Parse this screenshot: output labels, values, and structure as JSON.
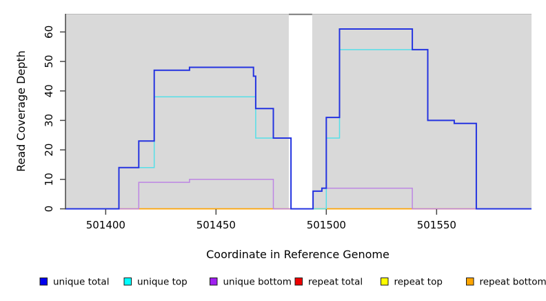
{
  "chart_data": {
    "type": "line",
    "subtype": "step-coverage",
    "title": "",
    "xlabel": "Coordinate in Reference Genome",
    "ylabel": "Read Coverage Depth",
    "x_ticks": [
      501400,
      501450,
      501500,
      501550
    ],
    "y_ticks": [
      0,
      10,
      20,
      30,
      40,
      50,
      60
    ],
    "x_range": [
      501381.5,
      501593
    ],
    "y_range": [
      0,
      66
    ],
    "grid": false,
    "plot_background": "#d9d9d9",
    "gap_region": {
      "x_start": 501483,
      "x_end": 501493.6
    },
    "series": [
      {
        "name": "repeat total",
        "color": "#ee2222",
        "line_width": 1.2,
        "points": [
          [
            501381.5,
            0
          ],
          [
            501593,
            0
          ]
        ]
      },
      {
        "name": "repeat top",
        "color": "#ffee00",
        "line_width": 1.2,
        "points": [
          [
            501381.5,
            0
          ],
          [
            501593,
            0
          ]
        ]
      },
      {
        "name": "repeat bottom",
        "color": "#ffa500",
        "line_width": 1.5,
        "points": [
          [
            501381.5,
            0
          ],
          [
            501593,
            0
          ]
        ]
      },
      {
        "name": "unique bottom",
        "color": "#bd85e3",
        "line_width": 1.5,
        "points": [
          [
            501381.5,
            0
          ],
          [
            501415,
            9
          ],
          [
            501438,
            10
          ],
          [
            501476,
            0
          ],
          [
            501494,
            6
          ],
          [
            501498,
            7
          ],
          [
            501539,
            0
          ],
          [
            501593,
            0
          ]
        ]
      },
      {
        "name": "unique top",
        "color": "#55dfe8",
        "line_width": 1.5,
        "points": [
          [
            501381.5,
            0
          ],
          [
            501406,
            14
          ],
          [
            501422,
            38
          ],
          [
            501468,
            24
          ],
          [
            501484,
            0
          ],
          [
            501500,
            24
          ],
          [
            501506,
            54
          ],
          [
            501546,
            30
          ],
          [
            501558,
            29
          ],
          [
            501568,
            0
          ],
          [
            501593,
            0
          ]
        ]
      },
      {
        "name": "unique total",
        "color": "#2433e0",
        "line_width": 2,
        "points": [
          [
            501381.5,
            0
          ],
          [
            501406,
            14
          ],
          [
            501415,
            23
          ],
          [
            501422,
            47
          ],
          [
            501438,
            48
          ],
          [
            501467,
            45
          ],
          [
            501468,
            34
          ],
          [
            501476,
            24
          ],
          [
            501484,
            0
          ],
          [
            501494,
            6
          ],
          [
            501498,
            7
          ],
          [
            501500,
            31
          ],
          [
            501506,
            61
          ],
          [
            501539,
            54
          ],
          [
            501546,
            30
          ],
          [
            501558,
            29
          ],
          [
            501568,
            0
          ],
          [
            501593,
            0
          ]
        ]
      }
    ],
    "legend": [
      {
        "label": "unique total",
        "color": "#0000ee"
      },
      {
        "label": "unique top",
        "color": "#00ffff"
      },
      {
        "label": "unique bottom",
        "color": "#a020f0"
      },
      {
        "label": "repeat total",
        "color": "#ee0000"
      },
      {
        "label": "repeat top",
        "color": "#ffff00"
      },
      {
        "label": "repeat bottom",
        "color": "#ffa500"
      }
    ],
    "legend_position": "bottom"
  }
}
